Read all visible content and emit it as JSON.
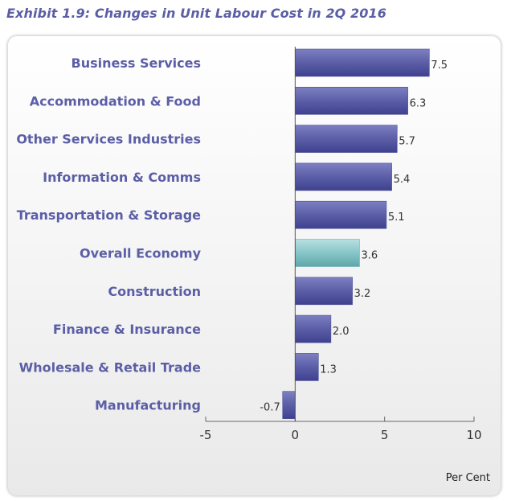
{
  "chart_data": {
    "type": "bar",
    "orientation": "horizontal",
    "title": "Exhibit 1.9: Changes in Unit Labour Cost in 2Q 2016",
    "categories": [
      "Business Services",
      "Accommodation & Food",
      "Other Services Industries",
      "Information & Comms",
      "Transportation & Storage",
      "Overall Economy",
      "Construction",
      "Finance & Insurance",
      "Wholesale & Retail Trade",
      "Manufacturing"
    ],
    "values": [
      7.5,
      6.3,
      5.7,
      5.4,
      5.1,
      3.6,
      3.2,
      2.0,
      1.3,
      -0.7
    ],
    "value_labels": [
      "7.5",
      "6.3",
      "5.7",
      "5.4",
      "5.1",
      "3.6",
      "3.2",
      "2.0",
      "1.3",
      "-0.7"
    ],
    "xlim": [
      -5,
      10
    ],
    "xticks": [
      -5,
      0,
      5,
      10
    ],
    "xlabel": "Per Cent",
    "highlight_category": "Overall Economy",
    "colors": {
      "bar": "#5b5ea6",
      "highlight": "#7fc4c6",
      "title": "#5b5ea6"
    }
  }
}
